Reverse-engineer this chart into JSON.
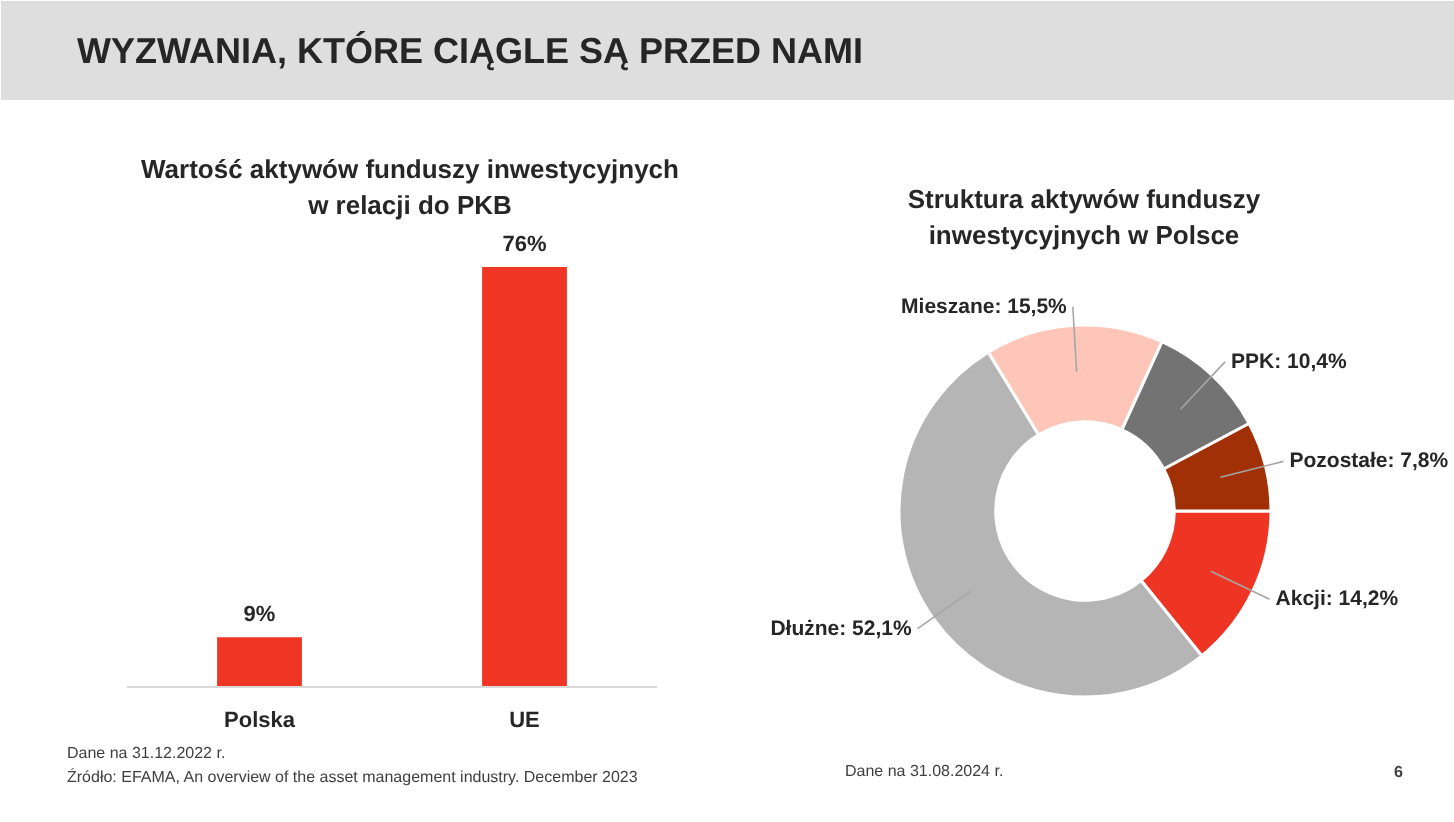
{
  "chart_data": [
    {
      "type": "other",
      "title": "WYZWANIA, KTÓRE CIĄGLE SĄ PRZED NAMI"
    },
    {
      "type": "bar",
      "title": "Wartość aktywów funduszy inwestycyjnych w relacji do PKB",
      "categories": [
        "Polska",
        "UE"
      ],
      "values": [
        9,
        76
      ],
      "value_labels": [
        "9%",
        "76%"
      ],
      "color": "#ef3524",
      "annotations": [
        "Dane na 31.12.2022 r.",
        "Źródło: EFAMA, An overview of the asset management industry. December 2023"
      ]
    },
    {
      "type": "donut",
      "title": "Struktura aktywów funduszy inwestycyjnych w Polsce",
      "categories": [
        "Akcji",
        "Dłużne",
        "Mieszane",
        "PPK",
        "Pozostałe"
      ],
      "values": [
        14.2,
        52.1,
        15.5,
        10.4,
        7.8
      ],
      "value_labels": [
        "14,2%",
        "52,1%",
        "15,5%",
        "10,4%",
        "7,8%"
      ],
      "colors": [
        "#ee3524",
        "#b5b5b5",
        "#fdc6b9",
        "#737373",
        "#a13006"
      ],
      "annotations": [
        "Dane na 31.08.2024 r.",
        "6"
      ]
    }
  ]
}
